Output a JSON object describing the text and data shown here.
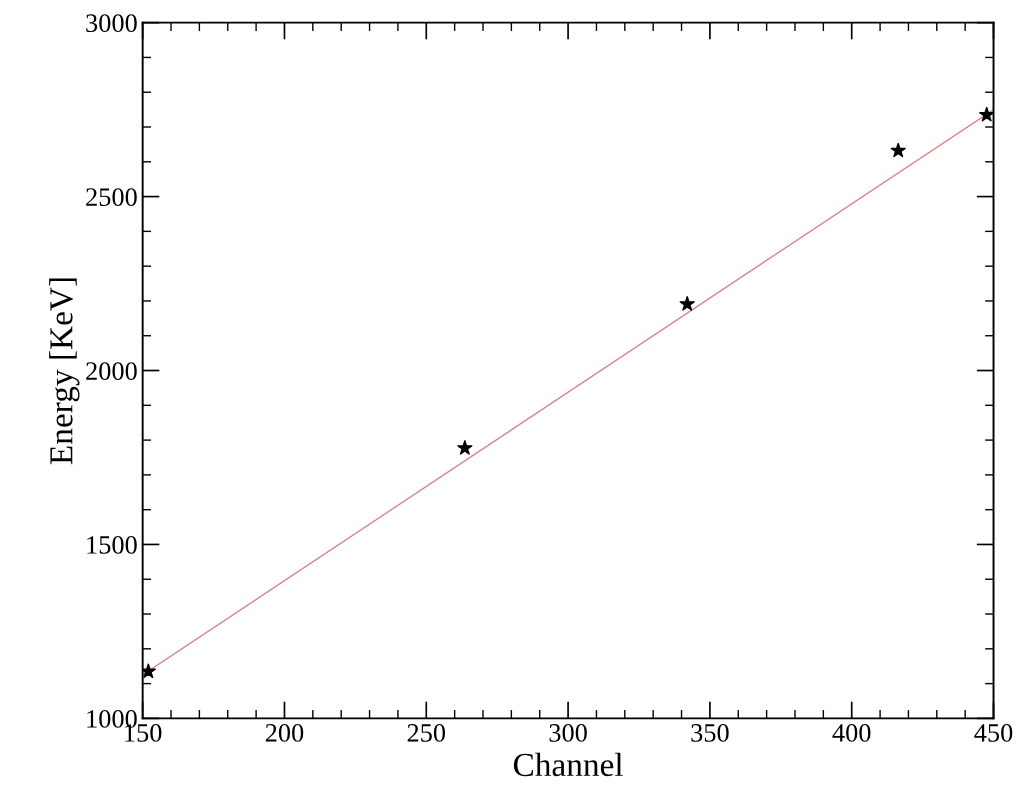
{
  "chart_data": {
    "type": "scatter",
    "xlabel": "Channel",
    "ylabel": "Energy [KeV]",
    "xlim": [
      150,
      450
    ],
    "ylim": [
      1000,
      3000
    ],
    "xticks": [
      150,
      {
        "value": 160,
        "label": null
      },
      {
        "value": 170,
        "label": null
      },
      {
        "value": 180,
        "label": null
      },
      {
        "value": 190,
        "label": null
      },
      200,
      {
        "value": 210,
        "label": null
      },
      {
        "value": 220,
        "label": null
      },
      {
        "value": 230,
        "label": null
      },
      {
        "value": 240,
        "label": null
      },
      250,
      {
        "value": 260,
        "label": null
      },
      {
        "value": 270,
        "label": null
      },
      {
        "value": 280,
        "label": null
      },
      {
        "value": 290,
        "label": null
      },
      300,
      {
        "value": 310,
        "label": null
      },
      {
        "value": 320,
        "label": null
      },
      {
        "value": 330,
        "label": null
      },
      {
        "value": 340,
        "label": null
      },
      350,
      {
        "value": 360,
        "label": null
      },
      {
        "value": 370,
        "label": null
      },
      {
        "value": 380,
        "label": null
      },
      {
        "value": 390,
        "label": null
      },
      400,
      {
        "value": 410,
        "label": null
      },
      {
        "value": 420,
        "label": null
      },
      {
        "value": 430,
        "label": null
      },
      {
        "value": 440,
        "label": null
      },
      450
    ],
    "yticks": [
      1000,
      {
        "value": 1100,
        "label": null
      },
      {
        "value": 1200,
        "label": null
      },
      {
        "value": 1300,
        "label": null
      },
      {
        "value": 1400,
        "label": null
      },
      1500,
      {
        "value": 1600,
        "label": null
      },
      {
        "value": 1700,
        "label": null
      },
      {
        "value": 1800,
        "label": null
      },
      {
        "value": 1900,
        "label": null
      },
      2000,
      {
        "value": 2100,
        "label": null
      },
      {
        "value": 2200,
        "label": null
      },
      {
        "value": 2300,
        "label": null
      },
      {
        "value": 2400,
        "label": null
      },
      2500,
      {
        "value": 2600,
        "label": null
      },
      {
        "value": 2700,
        "label": null
      },
      {
        "value": 2800,
        "label": null
      },
      {
        "value": 2900,
        "label": null
      },
      3000
    ],
    "grid": false,
    "legend": false,
    "series": [
      {
        "type": "line",
        "color": "#d9868a",
        "x": [
          150,
          450
        ],
        "values": [
          1125,
          2750
        ],
        "marker": "none",
        "line_style": "solid"
      },
      {
        "color": "#000000",
        "x": [
          152,
          263.6,
          342,
          416.4,
          447.6
        ],
        "values": [
          1135,
          1777,
          2191,
          2632,
          2735
        ],
        "marker": "star"
      }
    ]
  }
}
